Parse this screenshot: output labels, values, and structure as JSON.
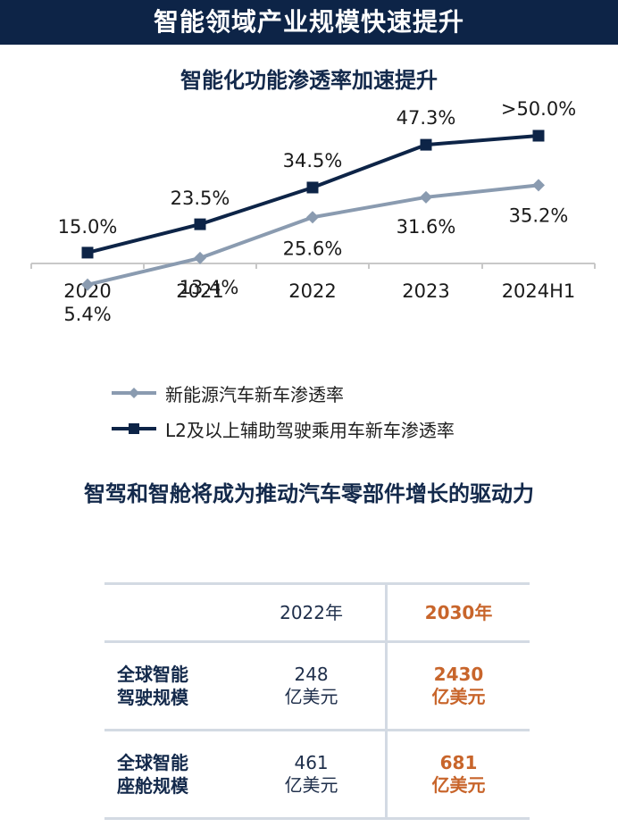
{
  "header": {
    "banner": "智能领域产业规模快速提升"
  },
  "chart_data": {
    "type": "line",
    "title": "智能化功能渗透率加速提升",
    "categories": [
      "2020",
      "2021",
      "2022",
      "2023",
      "2024H1"
    ],
    "series": [
      {
        "name": "新能源汽车新车渗透率",
        "values": [
          5.4,
          13.4,
          25.6,
          31.6,
          35.2
        ],
        "labels": [
          "5.4%",
          "13.4%",
          "25.6%",
          "31.6%",
          "35.2%"
        ],
        "color": "#8a9bb0",
        "marker": "diamond"
      },
      {
        "name": "L2及以上辅助驾驶乘用车新车渗透率",
        "values": [
          15.0,
          23.5,
          34.5,
          47.3,
          50.0
        ],
        "labels": [
          "15.0%",
          "23.5%",
          "34.5%",
          "47.3%",
          ">50.0%"
        ],
        "color": "#0d2447",
        "marker": "square"
      }
    ],
    "xlabel": "",
    "ylabel": "",
    "grid": false,
    "legend": "bottom"
  },
  "section": {
    "title": "智驾和智舱将成为推动汽车零部件增长的驱动力"
  },
  "table": {
    "header": [
      "",
      "2022年",
      "2030年"
    ],
    "rows": [
      {
        "name": [
          "全球智能",
          "驾驶规模"
        ],
        "v2022": [
          "248",
          "亿美元"
        ],
        "v2030": [
          "2430",
          "亿美元"
        ]
      },
      {
        "name": [
          "全球智能",
          "座舱规模"
        ],
        "v2022": [
          "461",
          "亿美元"
        ],
        "v2030": [
          "681",
          "亿美元"
        ]
      }
    ]
  }
}
